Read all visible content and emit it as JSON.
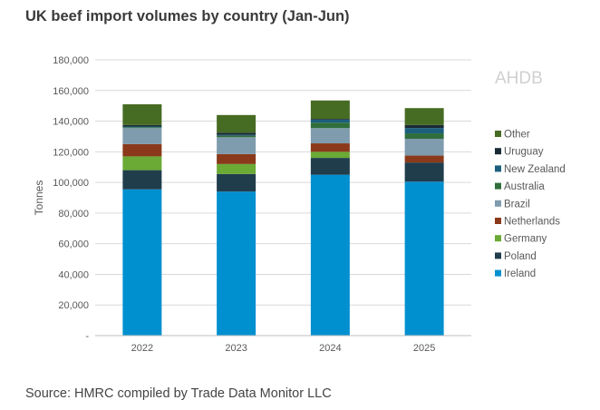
{
  "chart_data": {
    "type": "bar",
    "stacked": true,
    "title": "UK beef import volumes by country (Jan-Jun)",
    "ylabel": "Tonnes",
    "xlabel": "",
    "ylim": [
      0,
      180000
    ],
    "yticks": [
      "-",
      "20,000",
      "40,000",
      "60,000",
      "80,000",
      "100,000",
      "120,000",
      "140,000",
      "160,000",
      "180,000"
    ],
    "grid": true,
    "legend_position": "right",
    "categories": [
      "2022",
      "2023",
      "2024",
      "2025"
    ],
    "series": [
      {
        "name": "Ireland",
        "color": "#0090D0",
        "values": [
          95500,
          94000,
          105000,
          100500
        ]
      },
      {
        "name": "Poland",
        "color": "#203D4C",
        "values": [
          12500,
          11500,
          11000,
          12500
        ]
      },
      {
        "name": "Germany",
        "color": "#6AAA35",
        "values": [
          9000,
          6500,
          4000,
          0
        ]
      },
      {
        "name": "Netherlands",
        "color": "#8A3A1A",
        "values": [
          8000,
          6500,
          5500,
          4500
        ]
      },
      {
        "name": "Brazil",
        "color": "#7F9BAE",
        "values": [
          10500,
          11000,
          10000,
          11000
        ]
      },
      {
        "name": "Australia",
        "color": "#2F6E3A",
        "values": [
          500,
          1000,
          3500,
          3500
        ]
      },
      {
        "name": "New Zealand",
        "color": "#1C5F7C",
        "values": [
          500,
          500,
          2000,
          3500
        ]
      },
      {
        "name": "Uruguay",
        "color": "#1A2B35",
        "values": [
          1000,
          1500,
          500,
          2000
        ]
      },
      {
        "name": "Other",
        "color": "#466B22",
        "values": [
          13500,
          11500,
          12000,
          11000
        ]
      }
    ]
  },
  "watermark": "AHDB",
  "source": "Source: HMRC compiled by Trade Data Monitor LLC"
}
